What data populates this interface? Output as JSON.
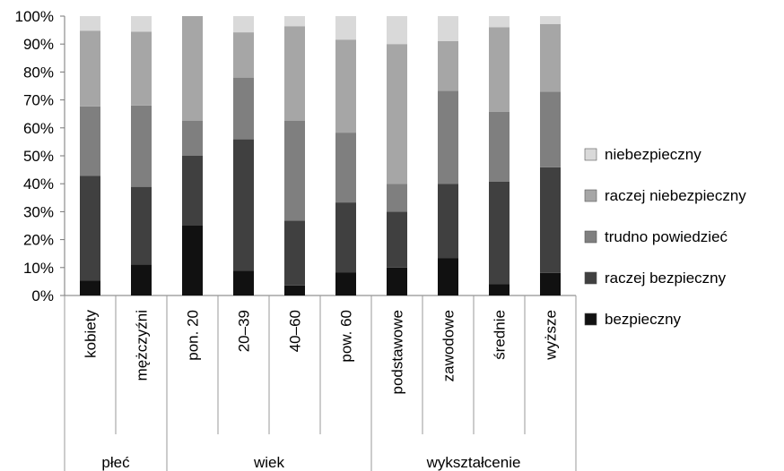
{
  "chart_data": {
    "type": "bar",
    "stacked": true,
    "percent": true,
    "categories": [
      "kobiety",
      "mężczyźni",
      "pon. 20",
      "20–39",
      "40–60",
      "pow. 60",
      "podstawowe",
      "zawodowe",
      "średnie",
      "wyższe"
    ],
    "groups": [
      {
        "label": "płeć",
        "from": 0,
        "to": 1
      },
      {
        "label": "wiek",
        "from": 2,
        "to": 5
      },
      {
        "label": "wykształcenie",
        "from": 6,
        "to": 9
      }
    ],
    "series": [
      {
        "name": "bezpieczny",
        "color": "#111111",
        "values": [
          5.3,
          11.1,
          25.0,
          8.8,
          3.6,
          8.3,
          10.0,
          13.3,
          4.0,
          8.1
        ]
      },
      {
        "name": "raczej bezpieczny",
        "color": "#404040",
        "values": [
          37.5,
          27.8,
          25.0,
          47.1,
          23.2,
          25.0,
          20.0,
          26.7,
          36.8,
          37.8
        ]
      },
      {
        "name": "trudno powiedzieć",
        "color": "#7f7f7f",
        "values": [
          24.9,
          29.1,
          12.5,
          22.1,
          35.7,
          25.0,
          10.0,
          33.3,
          25.0,
          27.1
        ]
      },
      {
        "name": "raczej niebezpieczny",
        "color": "#a6a6a6",
        "values": [
          27.1,
          26.4,
          37.5,
          16.2,
          33.9,
          33.3,
          50.0,
          17.8,
          30.2,
          24.2
        ]
      },
      {
        "name": "niebezpieczny",
        "color": "#d9d9d9",
        "values": [
          5.2,
          5.6,
          0.0,
          5.8,
          3.6,
          8.4,
          10.0,
          8.9,
          4.0,
          2.8
        ]
      }
    ],
    "legend_order": [
      "niebezpieczny",
      "raczej niebezpieczny",
      "trudno powiedzieć",
      "raczej bezpieczny",
      "bezpieczny"
    ],
    "yticks": [
      "0%",
      "10%",
      "20%",
      "30%",
      "40%",
      "50%",
      "60%",
      "70%",
      "80%",
      "90%",
      "100%"
    ],
    "ylim": [
      0,
      100
    ],
    "grid": false,
    "legend_position": "right"
  }
}
